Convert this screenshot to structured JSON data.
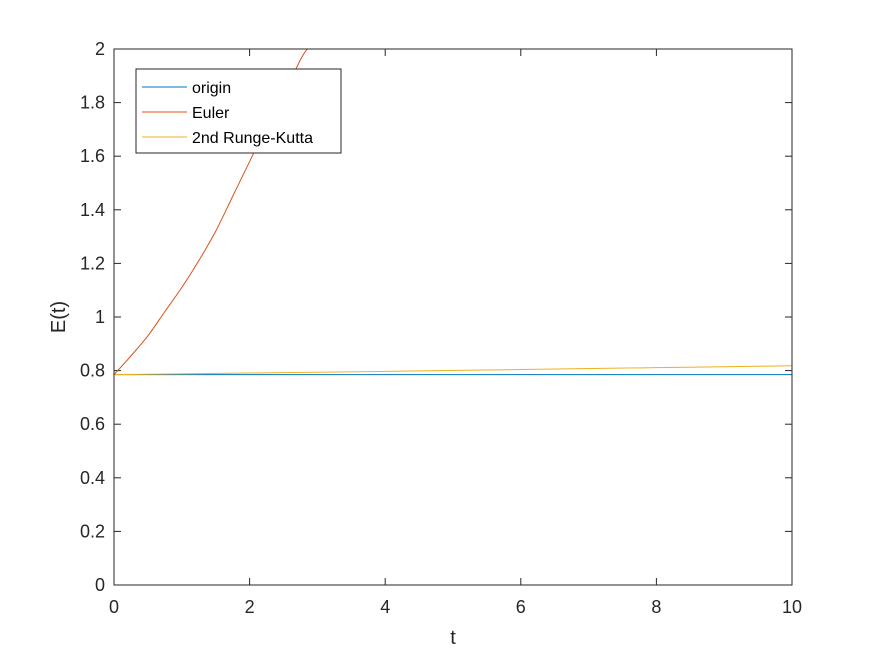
{
  "chart_data": {
    "type": "line",
    "xlabel": "t",
    "ylabel": "E(t)",
    "xlim": [
      0,
      10
    ],
    "ylim": [
      0,
      2
    ],
    "xticks": [
      "0",
      "2",
      "4",
      "6",
      "8",
      "10"
    ],
    "yticks": [
      "0",
      "0.2",
      "0.4",
      "0.6",
      "0.8",
      "1",
      "1.2",
      "1.4",
      "1.6",
      "1.8",
      "2"
    ],
    "grid": false,
    "legend": {
      "position": "top-left"
    },
    "series": [
      {
        "name": "origin",
        "color": "#0072BD",
        "x": [
          0,
          2,
          4,
          6,
          8,
          10
        ],
        "y": [
          0.785,
          0.785,
          0.785,
          0.785,
          0.785,
          0.785
        ]
      },
      {
        "name": "Euler",
        "color": "#D95319",
        "x": [
          0,
          0.25,
          0.5,
          0.75,
          1.0,
          1.25,
          1.5,
          1.75,
          2.0,
          2.25,
          2.5,
          2.75,
          2.85
        ],
        "y": [
          0.785,
          0.855,
          0.93,
          1.02,
          1.11,
          1.21,
          1.32,
          1.45,
          1.58,
          1.71,
          1.83,
          1.96,
          2.0
        ]
      },
      {
        "name": "2nd Runge-Kutta",
        "color": "#EDB120",
        "x": [
          0,
          2,
          4,
          6,
          8,
          10
        ],
        "y": [
          0.785,
          0.791,
          0.797,
          0.804,
          0.811,
          0.818
        ]
      }
    ]
  }
}
